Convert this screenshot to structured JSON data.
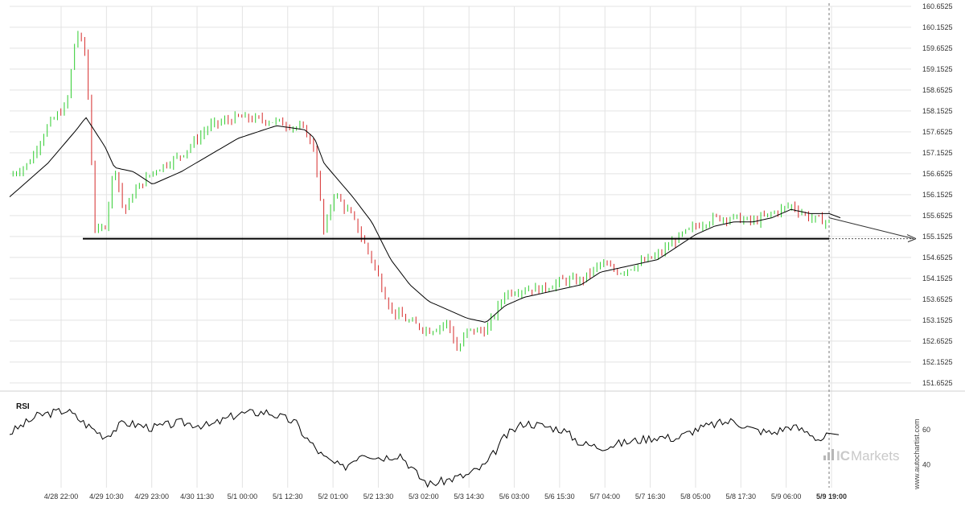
{
  "chart_data": [
    {
      "type": "candlestick",
      "panel": "price",
      "y_ticks": [
        "160.6525",
        "160.1525",
        "159.6525",
        "159.1525",
        "158.6525",
        "158.1525",
        "157.6525",
        "157.1525",
        "156.6525",
        "156.1525",
        "155.6525",
        "155.1525",
        "154.6525",
        "154.1525",
        "153.6525",
        "153.1525",
        "152.6525",
        "152.1525",
        "151.6525"
      ],
      "ylim": [
        151.65,
        160.65
      ],
      "x_ticks": [
        "4/28 22:00",
        "4/29 10:30",
        "4/29 23:00",
        "4/30 11:30",
        "5/1 00:00",
        "5/1 12:30",
        "5/2 01:00",
        "5/2 13:30",
        "5/3 02:00",
        "5/3 14:30",
        "5/6 03:00",
        "5/6 15:30",
        "5/7 04:00",
        "5/7 16:30",
        "5/8 05:00",
        "5/8 17:30",
        "5/9 06:00",
        "5/9 19:00"
      ],
      "price_keypoints": [
        {
          "x": 0,
          "y": 156.6
        },
        {
          "x": 2,
          "y": 156.9
        },
        {
          "x": 4,
          "y": 157.8
        },
        {
          "x": 6,
          "y": 158.3
        },
        {
          "x": 7,
          "y": 160.1
        },
        {
          "x": 8,
          "y": 159.5
        },
        {
          "x": 9,
          "y": 155.2
        },
        {
          "x": 10,
          "y": 155.4
        },
        {
          "x": 11,
          "y": 156.9
        },
        {
          "x": 12,
          "y": 155.7
        },
        {
          "x": 13,
          "y": 156.2
        },
        {
          "x": 15,
          "y": 156.7
        },
        {
          "x": 18,
          "y": 157.1
        },
        {
          "x": 21,
          "y": 157.8
        },
        {
          "x": 24,
          "y": 158.0
        },
        {
          "x": 28,
          "y": 157.9
        },
        {
          "x": 31,
          "y": 157.7
        },
        {
          "x": 32,
          "y": 157.2
        },
        {
          "x": 33,
          "y": 155.2
        },
        {
          "x": 34,
          "y": 156.2
        },
        {
          "x": 36,
          "y": 155.6
        },
        {
          "x": 38,
          "y": 154.6
        },
        {
          "x": 40,
          "y": 153.4
        },
        {
          "x": 42,
          "y": 153.1
        },
        {
          "x": 44,
          "y": 152.9
        },
        {
          "x": 46,
          "y": 153.1
        },
        {
          "x": 47,
          "y": 152.4
        },
        {
          "x": 48,
          "y": 152.9
        },
        {
          "x": 50,
          "y": 152.9
        },
        {
          "x": 52,
          "y": 153.8
        },
        {
          "x": 54,
          "y": 153.9
        },
        {
          "x": 56,
          "y": 153.9
        },
        {
          "x": 58,
          "y": 154.1
        },
        {
          "x": 60,
          "y": 154.1
        },
        {
          "x": 62,
          "y": 154.5
        },
        {
          "x": 64,
          "y": 154.3
        },
        {
          "x": 66,
          "y": 154.5
        },
        {
          "x": 68,
          "y": 154.7
        },
        {
          "x": 70,
          "y": 155.1
        },
        {
          "x": 72,
          "y": 155.4
        },
        {
          "x": 74,
          "y": 155.6
        },
        {
          "x": 76,
          "y": 155.6
        },
        {
          "x": 78,
          "y": 155.5
        },
        {
          "x": 80,
          "y": 155.7
        },
        {
          "x": 82,
          "y": 155.9
        },
        {
          "x": 84,
          "y": 155.6
        },
        {
          "x": 86,
          "y": 155.5
        }
      ],
      "moving_average_keypoints": [
        {
          "x": 0,
          "y": 156.1
        },
        {
          "x": 4,
          "y": 156.9
        },
        {
          "x": 7,
          "y": 157.7
        },
        {
          "x": 8,
          "y": 158.0
        },
        {
          "x": 10,
          "y": 157.3
        },
        {
          "x": 11,
          "y": 156.8
        },
        {
          "x": 13,
          "y": 156.7
        },
        {
          "x": 15,
          "y": 156.4
        },
        {
          "x": 18,
          "y": 156.7
        },
        {
          "x": 21,
          "y": 157.1
        },
        {
          "x": 24,
          "y": 157.5
        },
        {
          "x": 28,
          "y": 157.8
        },
        {
          "x": 31,
          "y": 157.7
        },
        {
          "x": 32,
          "y": 157.5
        },
        {
          "x": 33,
          "y": 156.9
        },
        {
          "x": 36,
          "y": 156.1
        },
        {
          "x": 38,
          "y": 155.5
        },
        {
          "x": 40,
          "y": 154.6
        },
        {
          "x": 42,
          "y": 154.0
        },
        {
          "x": 44,
          "y": 153.6
        },
        {
          "x": 46,
          "y": 153.4
        },
        {
          "x": 48,
          "y": 153.2
        },
        {
          "x": 50,
          "y": 153.1
        },
        {
          "x": 52,
          "y": 153.5
        },
        {
          "x": 54,
          "y": 153.7
        },
        {
          "x": 56,
          "y": 153.8
        },
        {
          "x": 58,
          "y": 153.9
        },
        {
          "x": 60,
          "y": 154.0
        },
        {
          "x": 62,
          "y": 154.3
        },
        {
          "x": 64,
          "y": 154.4
        },
        {
          "x": 66,
          "y": 154.5
        },
        {
          "x": 68,
          "y": 154.6
        },
        {
          "x": 70,
          "y": 154.9
        },
        {
          "x": 72,
          "y": 155.2
        },
        {
          "x": 74,
          "y": 155.4
        },
        {
          "x": 76,
          "y": 155.5
        },
        {
          "x": 78,
          "y": 155.5
        },
        {
          "x": 80,
          "y": 155.6
        },
        {
          "x": 82,
          "y": 155.8
        },
        {
          "x": 84,
          "y": 155.7
        },
        {
          "x": 86,
          "y": 155.7
        }
      ],
      "support_level": 155.1,
      "forecast": {
        "from": 155.6,
        "to": 155.1
      },
      "colors": {
        "up": "#2ecc2e",
        "down": "#d62b2b",
        "ma": "#000000",
        "level": "#000000",
        "grid": "#e3e3e3"
      }
    },
    {
      "type": "line",
      "panel": "indicator",
      "title": "RSI",
      "y_ticks": [
        "60",
        "40"
      ],
      "ylim": [
        27,
        80
      ],
      "keypoints": [
        {
          "x": 0,
          "y": 58
        },
        {
          "x": 3,
          "y": 68
        },
        {
          "x": 6,
          "y": 71
        },
        {
          "x": 8,
          "y": 63
        },
        {
          "x": 10,
          "y": 56
        },
        {
          "x": 12,
          "y": 64
        },
        {
          "x": 15,
          "y": 61
        },
        {
          "x": 18,
          "y": 64
        },
        {
          "x": 21,
          "y": 62
        },
        {
          "x": 24,
          "y": 69
        },
        {
          "x": 27,
          "y": 70
        },
        {
          "x": 30,
          "y": 64
        },
        {
          "x": 31,
          "y": 56
        },
        {
          "x": 33,
          "y": 44
        },
        {
          "x": 35,
          "y": 38
        },
        {
          "x": 37,
          "y": 47
        },
        {
          "x": 39,
          "y": 44
        },
        {
          "x": 41,
          "y": 46
        },
        {
          "x": 43,
          "y": 33
        },
        {
          "x": 44,
          "y": 29
        },
        {
          "x": 45,
          "y": 30
        },
        {
          "x": 47,
          "y": 33
        },
        {
          "x": 48,
          "y": 34
        },
        {
          "x": 50,
          "y": 40
        },
        {
          "x": 52,
          "y": 56
        },
        {
          "x": 54,
          "y": 64
        },
        {
          "x": 56,
          "y": 62
        },
        {
          "x": 58,
          "y": 60
        },
        {
          "x": 60,
          "y": 52
        },
        {
          "x": 62,
          "y": 50
        },
        {
          "x": 64,
          "y": 52
        },
        {
          "x": 66,
          "y": 54
        },
        {
          "x": 68,
          "y": 56
        },
        {
          "x": 70,
          "y": 55
        },
        {
          "x": 72,
          "y": 60
        },
        {
          "x": 74,
          "y": 63
        },
        {
          "x": 76,
          "y": 65
        },
        {
          "x": 78,
          "y": 60
        },
        {
          "x": 80,
          "y": 58
        },
        {
          "x": 82,
          "y": 62
        },
        {
          "x": 84,
          "y": 58
        },
        {
          "x": 85,
          "y": 54
        },
        {
          "x": 86,
          "y": 57
        }
      ],
      "color": "#000000"
    }
  ],
  "watermark": {
    "brand_prefix": "IC",
    "brand_name": "Markets",
    "site": "www.autochartist.com"
  }
}
